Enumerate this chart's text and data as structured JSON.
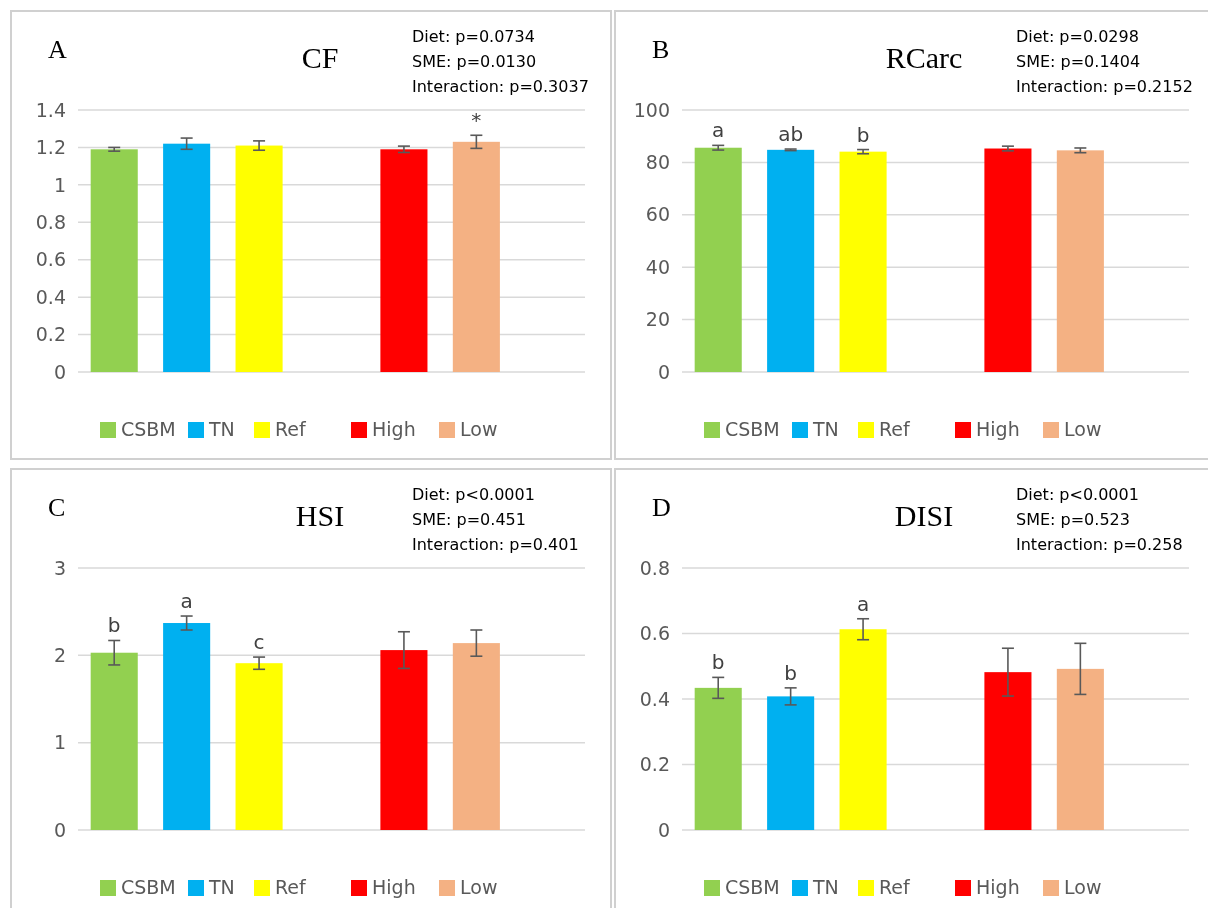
{
  "chart_data": [
    {
      "type": "bar",
      "title": "CF",
      "annotations": [
        "A",
        "Diet: p=0.0734",
        "SME: p=0.0130",
        "Interaction: p=0.3037"
      ],
      "categories": [
        null,
        null,
        null,
        null,
        null,
        null,
        null
      ],
      "ylim": [
        0,
        1.4
      ],
      "yticks": [
        {
          "value": 0,
          "label": "0"
        },
        {
          "value": 0.2,
          "label": "0.2"
        },
        {
          "value": 0.4,
          "label": "0.4"
        },
        {
          "value": 0.6,
          "label": "0.6"
        },
        {
          "value": 0.8,
          "label": "0.8"
        },
        {
          "value": 1,
          "label": "1"
        },
        {
          "value": 1.2,
          "label": "1.2"
        },
        {
          "value": 1.4,
          "label": "1.4"
        }
      ],
      "grid": "y",
      "legend": "bottom",
      "series": [
        {
          "name": "CSBM",
          "color": "#92d050",
          "values": [
            1.19,
            null,
            null,
            null,
            null,
            null,
            null
          ],
          "errors": [
            0.01,
            null,
            null,
            null,
            null,
            null,
            null
          ]
        },
        {
          "name": "TN",
          "color": "#00b0f0",
          "values": [
            null,
            1.22,
            null,
            null,
            null,
            null,
            null
          ],
          "errors": [
            null,
            0.03,
            null,
            null,
            null,
            null,
            null
          ]
        },
        {
          "name": "Ref",
          "color": "#ffff00",
          "values": [
            null,
            null,
            1.21,
            null,
            null,
            null,
            null
          ],
          "errors": [
            null,
            null,
            0.025,
            null,
            null,
            null,
            null
          ]
        },
        {
          "name": "High",
          "color": "#ff0000",
          "values": [
            null,
            null,
            null,
            null,
            1.19,
            null,
            null
          ],
          "errors": [
            null,
            null,
            null,
            null,
            0.017,
            null,
            null
          ]
        },
        {
          "name": "Low",
          "color": "#f4b183",
          "values": [
            null,
            null,
            null,
            null,
            null,
            1.23,
            null
          ],
          "errors": [
            null,
            null,
            null,
            null,
            null,
            0.035,
            null
          ],
          "value_labels": [
            null,
            null,
            null,
            null,
            null,
            "*",
            null
          ]
        }
      ]
    },
    {
      "type": "bar",
      "title": "RCarc",
      "annotations": [
        "B",
        "Diet: p=0.0298",
        "SME: p=0.1404",
        "Interaction: p=0.2152"
      ],
      "categories": [
        null,
        null,
        null,
        null,
        null,
        null,
        null
      ],
      "ylim": [
        0,
        100
      ],
      "yticks": [
        0,
        20,
        40,
        60,
        80,
        100
      ],
      "grid": "y",
      "legend": "bottom",
      "series": [
        {
          "name": "CSBM",
          "color": "#92d050",
          "values": [
            85.6,
            null,
            null,
            null,
            null,
            null,
            null
          ],
          "errors": [
            0.9,
            null,
            null,
            null,
            null,
            null,
            null
          ],
          "value_labels": [
            "a",
            null,
            null,
            null,
            null,
            null,
            null
          ]
        },
        {
          "name": "TN",
          "color": "#00b0f0",
          "values": [
            null,
            84.8,
            null,
            null,
            null,
            null,
            null
          ],
          "errors": [
            null,
            0.3,
            null,
            null,
            null,
            null,
            null
          ],
          "value_labels": [
            null,
            "ab",
            null,
            null,
            null,
            null,
            null
          ]
        },
        {
          "name": "Ref",
          "color": "#ffff00",
          "values": [
            null,
            null,
            84.1,
            null,
            null,
            null,
            null
          ],
          "errors": [
            null,
            null,
            0.8,
            null,
            null,
            null,
            null
          ],
          "value_labels": [
            null,
            null,
            "b",
            null,
            null,
            null,
            null
          ]
        },
        {
          "name": "High",
          "color": "#ff0000",
          "values": [
            null,
            null,
            null,
            null,
            85.3,
            null,
            null
          ],
          "errors": [
            null,
            null,
            null,
            null,
            0.9,
            null,
            null
          ]
        },
        {
          "name": "Low",
          "color": "#f4b183",
          "values": [
            null,
            null,
            null,
            null,
            null,
            84.6,
            null
          ],
          "errors": [
            null,
            null,
            null,
            null,
            null,
            0.9,
            null
          ]
        }
      ]
    },
    {
      "type": "bar",
      "title": "HSI",
      "annotations": [
        "C",
        "Diet: p<0.0001",
        "SME: p=0.451",
        "Interaction: p=0.401"
      ],
      "categories": [
        null,
        null,
        null,
        null,
        null,
        null,
        null
      ],
      "ylim": [
        0,
        3
      ],
      "yticks": [
        0,
        1,
        2,
        3
      ],
      "grid": "y",
      "legend": "bottom",
      "series": [
        {
          "name": "CSBM",
          "color": "#92d050",
          "values": [
            2.03,
            null,
            null,
            null,
            null,
            null,
            null
          ],
          "errors": [
            0.14,
            null,
            null,
            null,
            null,
            null,
            null
          ],
          "value_labels": [
            "b",
            null,
            null,
            null,
            null,
            null,
            null
          ]
        },
        {
          "name": "TN",
          "color": "#00b0f0",
          "values": [
            null,
            2.37,
            null,
            null,
            null,
            null,
            null
          ],
          "errors": [
            null,
            0.08,
            null,
            null,
            null,
            null,
            null
          ],
          "value_labels": [
            null,
            "a",
            null,
            null,
            null,
            null,
            null
          ]
        },
        {
          "name": "Ref",
          "color": "#ffff00",
          "values": [
            null,
            null,
            1.91,
            null,
            null,
            null,
            null
          ],
          "errors": [
            null,
            null,
            0.07,
            null,
            null,
            null,
            null
          ],
          "value_labels": [
            null,
            null,
            "c",
            null,
            null,
            null,
            null
          ]
        },
        {
          "name": "High",
          "color": "#ff0000",
          "values": [
            null,
            null,
            null,
            null,
            2.06,
            null,
            null
          ],
          "errors": [
            null,
            null,
            null,
            null,
            0.21,
            null,
            null
          ]
        },
        {
          "name": "Low",
          "color": "#f4b183",
          "values": [
            null,
            null,
            null,
            null,
            null,
            2.14,
            null
          ],
          "errors": [
            null,
            null,
            null,
            null,
            null,
            0.15,
            null
          ]
        }
      ]
    },
    {
      "type": "bar",
      "title": "DISI",
      "annotations": [
        "D",
        "Diet: p<0.0001",
        "SME: p=0.523",
        "Interaction: p=0.258"
      ],
      "categories": [
        null,
        null,
        null,
        null,
        null,
        null,
        null
      ],
      "ylim": [
        0,
        0.8
      ],
      "yticks": [
        {
          "value": 0,
          "label": "0"
        },
        {
          "value": 0.2,
          "label": "0.2"
        },
        {
          "value": 0.4,
          "label": "0.4"
        },
        {
          "value": 0.6,
          "label": "0.6"
        },
        {
          "value": 0.8,
          "label": "0.8"
        }
      ],
      "grid": "y",
      "legend": "bottom",
      "series": [
        {
          "name": "CSBM",
          "color": "#92d050",
          "values": [
            0.434,
            null,
            null,
            null,
            null,
            null,
            null
          ],
          "errors": [
            0.032,
            null,
            null,
            null,
            null,
            null,
            null
          ],
          "value_labels": [
            "b",
            null,
            null,
            null,
            null,
            null,
            null
          ]
        },
        {
          "name": "TN",
          "color": "#00b0f0",
          "values": [
            null,
            0.408,
            null,
            null,
            null,
            null,
            null
          ],
          "errors": [
            null,
            0.026,
            null,
            null,
            null,
            null,
            null
          ],
          "value_labels": [
            null,
            "b",
            null,
            null,
            null,
            null,
            null
          ]
        },
        {
          "name": "Ref",
          "color": "#ffff00",
          "values": [
            null,
            null,
            0.613,
            null,
            null,
            null,
            null
          ],
          "errors": [
            null,
            null,
            0.032,
            null,
            null,
            null,
            null
          ],
          "value_labels": [
            null,
            null,
            "a",
            null,
            null,
            null,
            null
          ]
        },
        {
          "name": "High",
          "color": "#ff0000",
          "values": [
            null,
            null,
            null,
            null,
            0.482,
            null,
            null
          ],
          "errors": [
            null,
            null,
            null,
            null,
            0.073,
            null,
            null
          ]
        },
        {
          "name": "Low",
          "color": "#f4b183",
          "values": [
            null,
            null,
            null,
            null,
            null,
            0.492,
            null
          ],
          "errors": [
            null,
            null,
            null,
            null,
            null,
            0.078,
            null
          ]
        }
      ]
    }
  ]
}
